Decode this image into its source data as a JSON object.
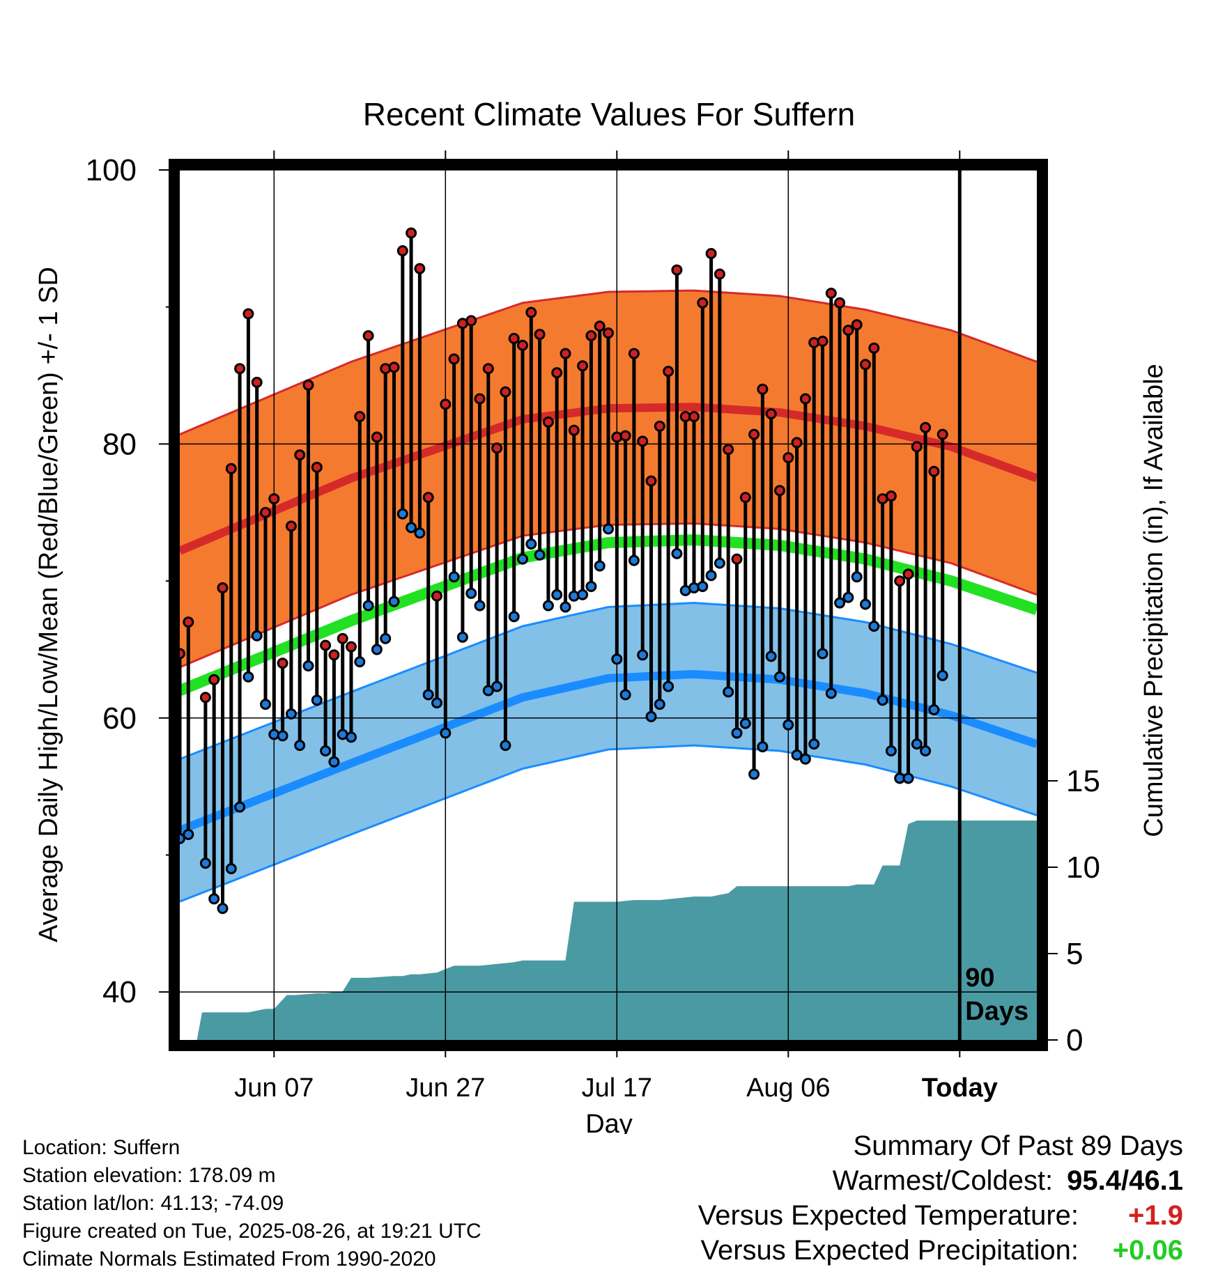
{
  "chart_data": {
    "type": "line",
    "title": "Recent Climate Values For Suffern",
    "xlabel": "Day",
    "ylabel": "Average Daily High/Low/Mean (Red/Blue/Green) +/- 1 SD",
    "y2label": "Cumulative Precipitation (in), If Available",
    "ylim": [
      36.5,
      100
    ],
    "y2lim": [
      0,
      15
    ],
    "yticks": [
      "40",
      "60",
      "80",
      "100"
    ],
    "y2ticks": [
      "0",
      "5",
      "10",
      "15"
    ],
    "xticks": [
      "Jun 07",
      "Jun 27",
      "Jul 17",
      "Aug 06",
      "Today"
    ],
    "xtick_days": [
      11,
      31,
      51,
      71,
      91
    ],
    "xrange_days": [
      0,
      100
    ],
    "today_day": 91,
    "window_label": "90 Days",
    "grid": true,
    "colors": {
      "high_normal": "#d62a2a",
      "high_band": "#f47a30",
      "low_normal": "#1a8cff",
      "low_band": "#82c0e8",
      "mean_normal": "#22e022",
      "precip": "#4a9aa3",
      "high_point": "#cc2222",
      "low_point": "#1e7ad8"
    },
    "high_normal": {
      "x": [
        0,
        20,
        40,
        50,
        60,
        70,
        80,
        90,
        100
      ],
      "values": [
        72.2,
        77.5,
        81.8,
        82.6,
        82.7,
        82.3,
        81.3,
        79.8,
        77.5
      ]
    },
    "high_sd": 8.5,
    "low_normal": {
      "x": [
        0,
        20,
        40,
        50,
        60,
        70,
        80,
        90,
        100
      ],
      "values": [
        51.8,
        56.7,
        61.5,
        62.9,
        63.2,
        62.8,
        61.8,
        60.2,
        58.1
      ]
    },
    "low_sd": 5.2,
    "mean_normal": {
      "x": [
        0,
        20,
        40,
        50,
        60,
        70,
        80,
        90,
        100
      ],
      "values": [
        62.0,
        67.1,
        71.7,
        72.8,
        73.0,
        72.6,
        71.6,
        70.0,
        67.9
      ]
    },
    "series": [
      {
        "name": "High",
        "values": [
          64.7,
          67.0,
          null,
          61.5,
          62.8,
          69.5,
          78.2,
          85.5,
          89.5,
          84.5,
          75.0,
          76.0,
          64.0,
          74.0,
          79.2,
          84.3,
          78.3,
          65.3,
          64.6,
          65.8,
          65.2,
          82.0,
          87.9,
          80.5,
          85.5,
          85.6,
          94.1,
          95.4,
          92.8,
          76.1,
          68.9,
          82.9,
          86.2,
          88.8,
          89.0,
          83.3,
          85.5,
          79.7,
          83.8,
          87.7,
          87.2,
          89.6,
          88.0,
          81.6,
          85.2,
          86.6,
          81.0,
          85.7,
          87.9,
          88.6,
          88.1,
          80.5,
          80.6,
          86.6,
          80.2,
          77.3,
          81.3,
          85.3,
          92.7,
          82.0,
          82.0,
          90.3,
          93.9,
          92.4,
          79.6,
          71.6,
          76.1,
          80.7,
          84.0,
          82.2,
          76.6,
          79.0,
          80.1,
          83.3,
          87.4,
          87.5,
          91.0,
          90.3,
          88.3,
          88.7,
          85.8,
          87.0,
          76.0,
          76.2,
          70.0,
          70.5,
          79.8,
          81.2,
          78.0,
          80.7
        ],
        "lows": [
          51.2,
          51.5,
          null,
          49.4,
          46.8,
          46.1,
          49.0,
          53.5,
          63.0,
          66.0,
          61.0,
          58.8,
          58.7,
          60.3,
          58.0,
          63.8,
          61.3,
          57.6,
          56.8,
          58.8,
          58.6,
          64.1,
          68.2,
          65.0,
          65.8,
          68.5,
          74.9,
          73.9,
          73.5,
          61.7,
          61.1,
          58.9,
          70.3,
          65.9,
          69.1,
          68.2,
          62.0,
          62.3,
          58.0,
          67.4,
          71.6,
          72.7,
          71.9,
          68.2,
          69.0,
          68.1,
          68.9,
          69.0,
          69.6,
          71.1,
          73.8,
          64.3,
          61.7,
          71.5,
          64.6,
          60.1,
          61.0,
          62.3,
          72.0,
          69.3,
          69.5,
          69.6,
          70.4,
          71.3,
          61.9,
          58.9,
          59.6,
          55.9,
          57.9,
          64.5,
          63.0,
          59.5,
          57.3,
          57.0,
          58.1,
          64.7,
          61.8,
          68.4,
          68.8,
          70.3,
          68.3,
          66.7,
          61.3,
          57.6,
          55.6,
          55.6,
          58.1,
          57.6,
          60.6,
          63.1
        ]
      }
    ],
    "precip": {
      "x": [
        0,
        2,
        2.6,
        7,
        8,
        9,
        10,
        11,
        12.5,
        13.5,
        16,
        17,
        19,
        20,
        21,
        22,
        25,
        26,
        27,
        28,
        30,
        32,
        34,
        35,
        39,
        40,
        41,
        42,
        45,
        46,
        47,
        48,
        51,
        53,
        56,
        58,
        60,
        62,
        64,
        65,
        66,
        67,
        70,
        72,
        75,
        78,
        79,
        80,
        81,
        82,
        84,
        85,
        86,
        90,
        100
      ],
      "values": [
        0,
        0,
        1.6,
        1.6,
        1.6,
        1.7,
        1.8,
        1.8,
        2.6,
        2.6,
        2.7,
        2.7,
        2.8,
        3.6,
        3.6,
        3.6,
        3.7,
        3.7,
        3.8,
        3.8,
        3.9,
        4.3,
        4.3,
        4.3,
        4.5,
        4.6,
        4.6,
        4.6,
        4.6,
        8.0,
        8.0,
        8.0,
        8.0,
        8.1,
        8.1,
        8.2,
        8.3,
        8.3,
        8.5,
        8.9,
        8.9,
        8.9,
        8.9,
        8.9,
        8.9,
        8.9,
        9.0,
        9.0,
        9.0,
        10.1,
        10.1,
        12.5,
        12.7,
        12.7,
        12.7
      ]
    }
  },
  "info": {
    "location": "Location: Suffern",
    "elevation": "Station elevation: 178.09 m",
    "latlon": "Station lat/lon: 41.13; -74.09",
    "created": "Figure created on Tue, 2025-08-26, at 19:21 UTC",
    "normals": "Climate Normals Estimated From 1990-2020"
  },
  "summary": {
    "title": "Summary Of Past 89 Days",
    "warmest_coldest_label": "Warmest/Coldest:",
    "warmest_coldest_value": "95.4/46.1",
    "temp_label": "Versus Expected Temperature:",
    "temp_value": "+1.9",
    "temp_color": "#d42020",
    "precip_label": "Versus Expected Precipitation:",
    "precip_value": "+0.06",
    "precip_color": "#22cc22"
  }
}
